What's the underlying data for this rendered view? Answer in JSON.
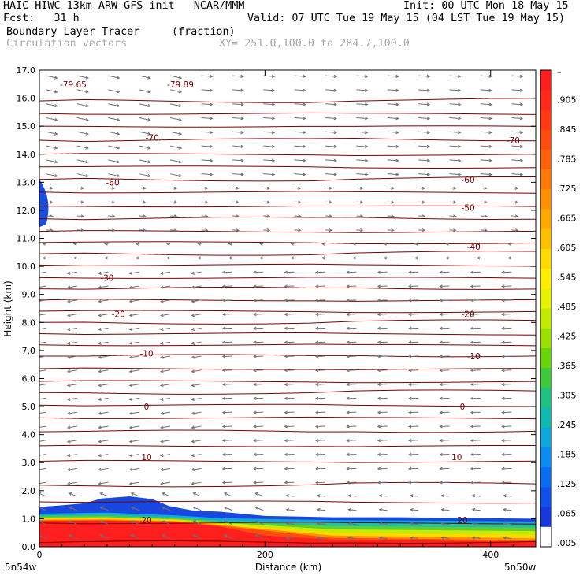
{
  "header": {
    "line1_left": "HAIC-HIWC 13km ARW-GFS init   NCAR/MMM",
    "line1_right": "Init: 00 UTC Mon 18 May 15",
    "line2_left": "Fcst:   31 h",
    "line2_right": "Valid: 07 UTC Tue 19 May 15 (04 LST Tue 19 May 15)",
    "line3_left": "Boundary Layer Tracer",
    "line3_mid": "(fraction)",
    "line4_left": "Circulation vectors",
    "line4_mid": "XY= 251.0,100.0 to 284.7,100.0"
  },
  "chart_data": {
    "type": "heatmap",
    "ylabel": "Height (km)",
    "xlabel": "Distance (km)",
    "xlim": [
      0,
      440
    ],
    "ylim": [
      0,
      17
    ],
    "x_ticks": [
      "0",
      "200",
      "400"
    ],
    "y_ticks": [
      "0.0",
      "1.0",
      "2.0",
      "3.0",
      "4.0",
      "5.0",
      "6.0",
      "7.0",
      "8.0",
      "9.0",
      "10.0",
      "11.0",
      "12.0",
      "13.0",
      "14.0",
      "15.0",
      "16.0",
      "17.0"
    ],
    "x_endpoints": {
      "left": "5n54w",
      "right": "5n50w"
    },
    "colorbar": {
      "labels": [
        "–",
        ".905",
        ".845",
        ".785",
        ".725",
        ".665",
        ".605",
        ".545",
        ".485",
        ".425",
        ".365",
        ".305",
        ".245",
        ".185",
        ".125",
        ".065",
        ".005"
      ],
      "colors": [
        "#ff1f1f",
        "#ff2a1a",
        "#ff3a14",
        "#ff4c10",
        "#ff600c",
        "#ff7808",
        "#ff9004",
        "#ffa800",
        "#ffc000",
        "#ffd800",
        "#ffee00",
        "#e6f200",
        "#c4ea00",
        "#9ae000",
        "#6ad40a",
        "#3ec83c",
        "#20c080",
        "#10b8b0",
        "#10a8dc",
        "#0c8cf0",
        "#0a6cf0",
        "#1050e8",
        "#1838dc",
        "#ffffff"
      ]
    },
    "temperature_contours": {
      "labels": [
        {
          "x": 30,
          "y": 16.5,
          "text": "-79.65"
        },
        {
          "x": 125,
          "y": 16.5,
          "text": "-79.89"
        },
        {
          "x": 100,
          "y": 14.6,
          "text": "-70"
        },
        {
          "x": 420,
          "y": 14.5,
          "text": "-70"
        },
        {
          "x": 65,
          "y": 13.0,
          "text": "-60"
        },
        {
          "x": 380,
          "y": 13.1,
          "text": "-60"
        },
        {
          "x": 380,
          "y": 12.1,
          "text": "-50"
        },
        {
          "x": 385,
          "y": 10.7,
          "text": "-40"
        },
        {
          "x": 60,
          "y": 9.6,
          "text": "-30"
        },
        {
          "x": 70,
          "y": 8.3,
          "text": "-20"
        },
        {
          "x": 380,
          "y": 8.3,
          "text": "-20"
        },
        {
          "x": 95,
          "y": 6.9,
          "text": "-10"
        },
        {
          "x": 385,
          "y": 6.8,
          "text": "-10"
        },
        {
          "x": 95,
          "y": 5.0,
          "text": "0"
        },
        {
          "x": 375,
          "y": 5.0,
          "text": "0"
        },
        {
          "x": 95,
          "y": 3.2,
          "text": "10"
        },
        {
          "x": 370,
          "y": 3.2,
          "text": "10"
        },
        {
          "x": 95,
          "y": 0.95,
          "text": "20"
        },
        {
          "x": 375,
          "y": 0.95,
          "text": "20"
        }
      ]
    },
    "vectors": "circulation vectors (mostly easterly/westward at mid levels, westerly aloft)"
  }
}
